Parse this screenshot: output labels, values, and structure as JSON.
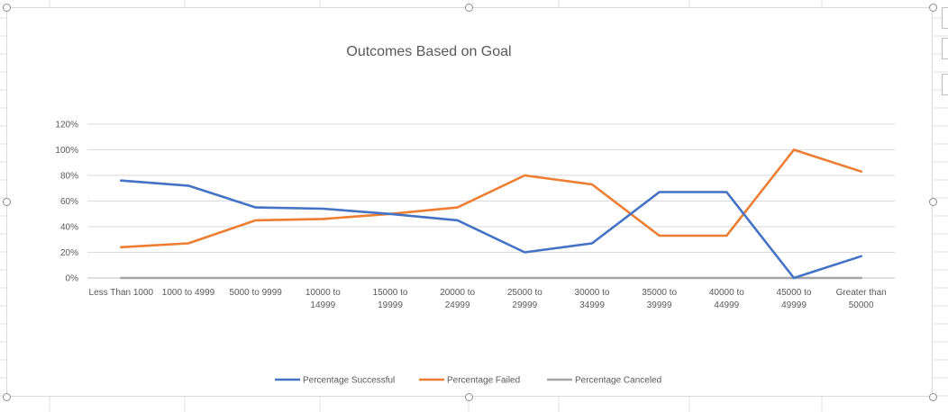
{
  "chart_data": {
    "type": "line",
    "title": "Outcomes Based on Goal",
    "xlabel": "",
    "ylabel": "",
    "categories": [
      [
        "Less Than 1000"
      ],
      [
        "1000 to 4999"
      ],
      [
        "5000 to 9999"
      ],
      [
        "10000 to",
        "14999"
      ],
      [
        "15000 to",
        "19999"
      ],
      [
        "20000 to",
        "24999"
      ],
      [
        "25000 to",
        "29999"
      ],
      [
        "30000 to",
        "34999"
      ],
      [
        "35000 to",
        "39999"
      ],
      [
        "40000 to",
        "44999"
      ],
      [
        "45000 to",
        "49999"
      ],
      [
        "Greater than",
        "50000"
      ]
    ],
    "yticks": [
      "0%",
      "20%",
      "40%",
      "60%",
      "80%",
      "100%",
      "120%"
    ],
    "ylim": [
      0,
      1.2
    ],
    "grid": true,
    "legend_position": "bottom",
    "series": [
      {
        "name": "Percentage Successful",
        "color": "#4472c4",
        "values": [
          0.76,
          0.72,
          0.55,
          0.54,
          0.5,
          0.45,
          0.2,
          0.27,
          0.67,
          0.67,
          0.0,
          0.17
        ]
      },
      {
        "name": "Percentage Failed",
        "color": "#ed7d31",
        "values": [
          0.24,
          0.27,
          0.45,
          0.46,
          0.5,
          0.55,
          0.8,
          0.73,
          0.33,
          0.33,
          1.0,
          0.83
        ]
      },
      {
        "name": "Percentage Canceled",
        "color": "#a5a5a5",
        "values": [
          0,
          0,
          0,
          0,
          0,
          0,
          0,
          0,
          0,
          0,
          0,
          0
        ]
      }
    ]
  }
}
